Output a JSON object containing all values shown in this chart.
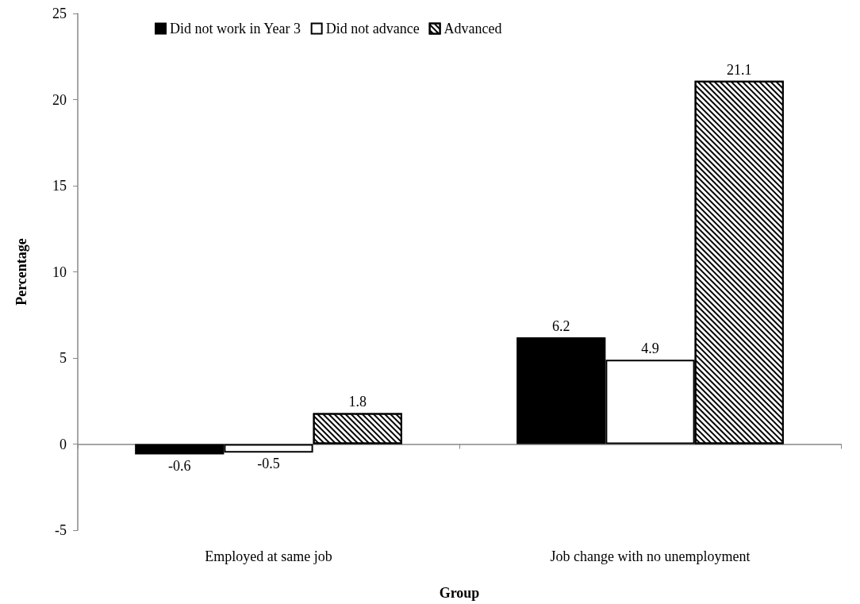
{
  "chart_data": {
    "type": "bar",
    "xlabel": "Group",
    "ylabel": "Percentage",
    "categories": [
      "Employed at same job",
      "Job change with no unemployment"
    ],
    "series": [
      {
        "name": "Did not work in Year 3",
        "color": "#000000",
        "values": [
          -0.6,
          6.2
        ]
      },
      {
        "name": "Did not advance",
        "color": "#ffffff",
        "values": [
          -0.5,
          4.9
        ]
      },
      {
        "name": "Advanced",
        "color": "#ffffff",
        "values": [
          1.8,
          21.1
        ]
      }
    ],
    "ylim": [
      -5,
      25
    ],
    "yticks": [
      -5,
      0,
      5,
      10,
      15,
      20,
      25
    ],
    "legend": "top",
    "data_labels": true
  }
}
